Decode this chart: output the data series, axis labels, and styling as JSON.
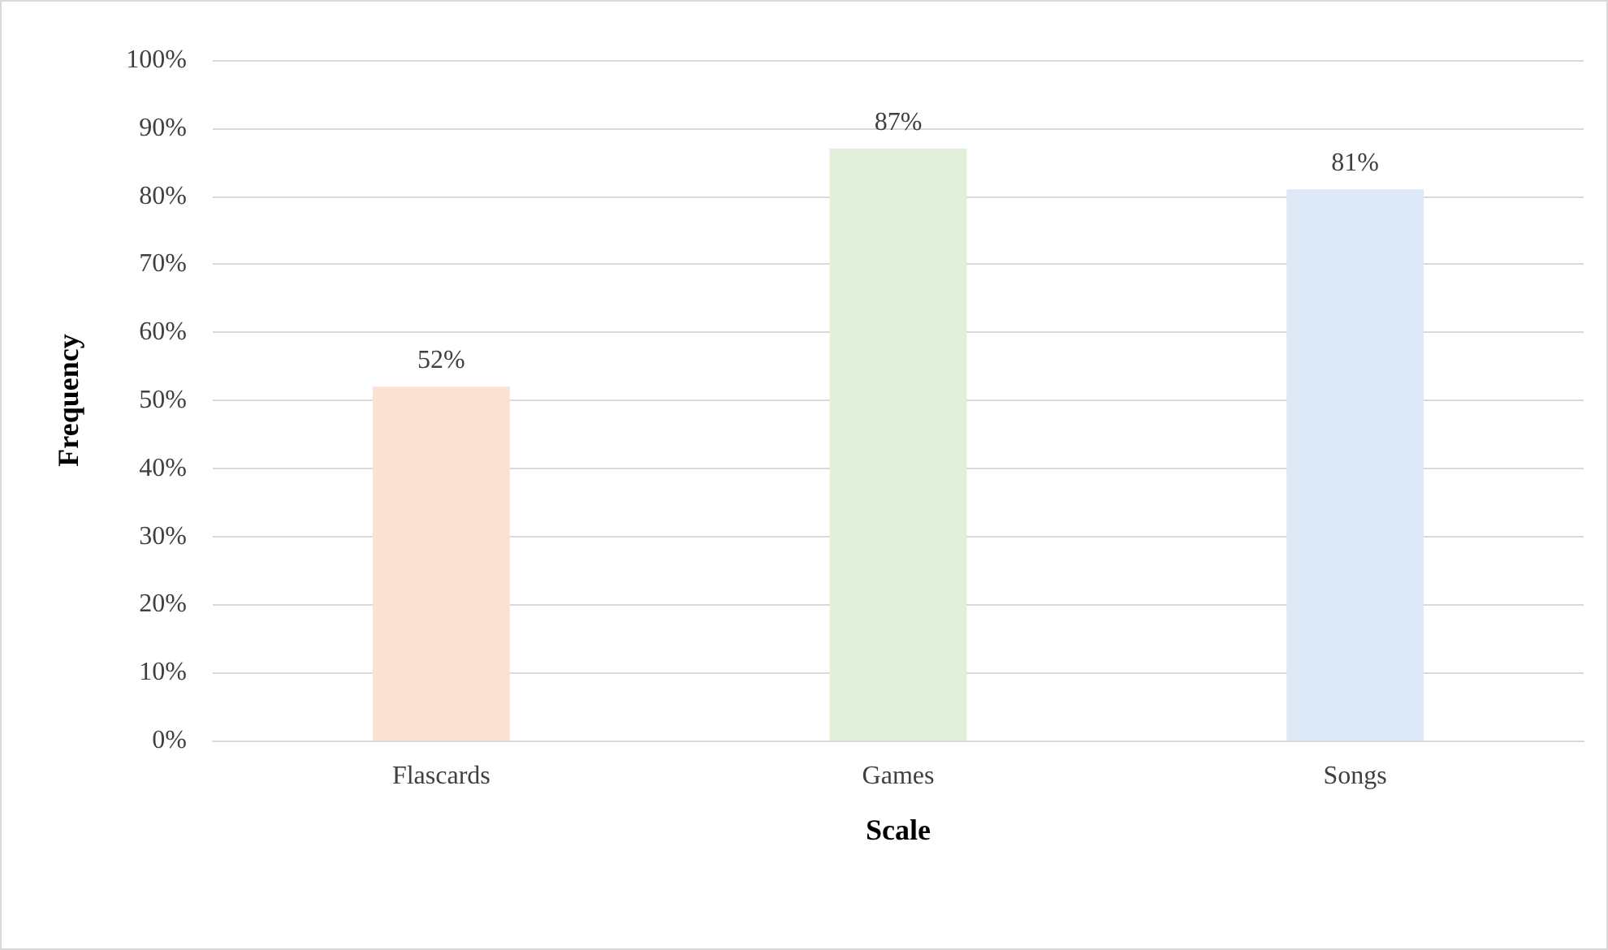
{
  "chart_data": {
    "type": "bar",
    "xlabel": "Scale",
    "ylabel": "Frequency",
    "categories": [
      "Flascards",
      "Games",
      "Songs"
    ],
    "values": [
      52,
      87,
      81
    ],
    "colors": [
      "#f9e2d4",
      "#e2efda",
      "#dde9f6"
    ],
    "value_labels": [
      "52%",
      "87%",
      "81%"
    ],
    "ylim": [
      0,
      100
    ],
    "yticks": [
      {
        "value": 0,
        "label": "0%"
      },
      {
        "value": 10,
        "label": "10%"
      },
      {
        "value": 20,
        "label": "20%"
      },
      {
        "value": 30,
        "label": "30%"
      },
      {
        "value": 40,
        "label": "40%"
      },
      {
        "value": 50,
        "label": "50%"
      },
      {
        "value": 60,
        "label": "60%"
      },
      {
        "value": 70,
        "label": "70%"
      },
      {
        "value": 80,
        "label": "80%"
      },
      {
        "value": 90,
        "label": "90%"
      },
      {
        "value": 100,
        "label": "100%"
      }
    ],
    "grid": "y"
  }
}
